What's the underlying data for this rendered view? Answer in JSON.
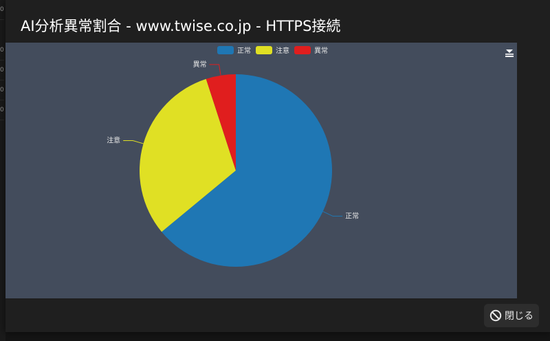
{
  "dialog": {
    "title": "AI分析異常割合 - www.twise.co.jp - HTTPS接続",
    "close_label": "閉じる",
    "close_icon": "ban-icon"
  },
  "background": {
    "ticks": [
      "0",
      "0",
      "0",
      "0",
      "0"
    ]
  },
  "toolbox": {
    "icon": "save-image-icon"
  },
  "colors": {
    "background": "#151515",
    "dialog": "#1f1f1f",
    "chart_background": "#434c5c",
    "normal": "#1f77b4",
    "caution": "#e0e024",
    "abnormal": "#e01e1e",
    "label_text": "#e6e6e6"
  },
  "chart_data": {
    "type": "pie",
    "title": "",
    "legend_position": "top-center",
    "categories": [
      "正常",
      "注意",
      "異常"
    ],
    "values": [
      64,
      31,
      5
    ],
    "colors": [
      "#1f77b4",
      "#e0e024",
      "#e01e1e"
    ]
  }
}
